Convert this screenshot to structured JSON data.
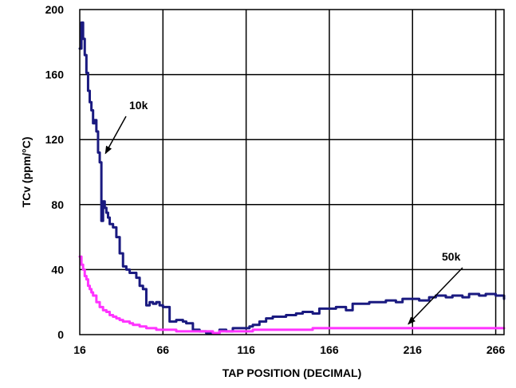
{
  "chart_data": {
    "type": "line",
    "title": "",
    "xlabel": "TAP POSITION (DECIMAL)",
    "ylabel": "TCv (ppm/°C)",
    "xlim": [
      16,
      271
    ],
    "ylim": [
      0,
      200
    ],
    "x_ticks": [
      16,
      66,
      116,
      166,
      216,
      266
    ],
    "y_ticks": [
      0,
      40,
      80,
      120,
      160,
      200
    ],
    "grid": true,
    "legend": "none",
    "colors": {
      "10k": "#1a1a80",
      "50k": "#ff33ff",
      "grid": "#000000"
    },
    "annotations": [
      {
        "text": "10k",
        "series": "10k",
        "target": {
          "x": 30,
          "y": 110
        }
      },
      {
        "text": "50k",
        "series": "50k",
        "target": {
          "x": 212,
          "y": 5
        }
      }
    ],
    "series": [
      {
        "name": "10k",
        "x": [
          16,
          17,
          18,
          19,
          20,
          21,
          22,
          23,
          24,
          25,
          26,
          27,
          28,
          29,
          30,
          31,
          32,
          33,
          34,
          36,
          38,
          40,
          42,
          44,
          46,
          48,
          50,
          52,
          54,
          56,
          58,
          60,
          62,
          64,
          66,
          70,
          74,
          78,
          80,
          84,
          88,
          92,
          96,
          100,
          104,
          108,
          112,
          116,
          118,
          120,
          124,
          128,
          132,
          136,
          140,
          146,
          150,
          156,
          160,
          166,
          170,
          176,
          180,
          186,
          190,
          196,
          200,
          206,
          210,
          216,
          220,
          226,
          230,
          236,
          240,
          246,
          250,
          256,
          260,
          266,
          271
        ],
        "values": [
          176,
          192,
          182,
          172,
          161,
          150,
          143,
          138,
          130,
          132,
          125,
          112,
          106,
          70,
          82,
          78,
          75,
          72,
          68,
          66,
          60,
          50,
          42,
          40,
          38,
          38,
          35,
          30,
          28,
          18,
          20,
          19,
          20,
          18,
          17,
          8,
          9,
          8,
          7,
          3,
          2,
          1,
          1,
          3,
          2,
          4,
          4,
          4,
          5,
          6,
          8,
          10,
          11,
          11,
          12,
          13,
          14,
          13,
          16,
          16,
          17,
          15,
          19,
          19,
          20,
          20,
          21,
          20,
          22,
          22,
          21,
          23,
          24,
          23,
          24,
          23,
          25,
          24,
          25,
          24,
          22
        ]
      },
      {
        "name": "50k",
        "x": [
          16,
          17,
          18,
          19,
          20,
          21,
          22,
          23,
          24,
          26,
          28,
          30,
          32,
          34,
          36,
          38,
          40,
          42,
          44,
          46,
          48,
          50,
          52,
          54,
          56,
          58,
          60,
          62,
          64,
          66,
          70,
          74,
          80,
          86,
          90,
          96,
          100,
          106,
          110,
          116,
          120,
          126,
          130,
          136,
          146,
          156,
          166,
          176,
          186,
          196,
          206,
          216,
          226,
          236,
          246,
          256,
          266,
          271
        ],
        "values": [
          48,
          43,
          40,
          36,
          34,
          30,
          28,
          26,
          24,
          20,
          17,
          15,
          14,
          12,
          11,
          10,
          9,
          8,
          8,
          7,
          6,
          6,
          5,
          5,
          4,
          4,
          4,
          3,
          3,
          3,
          3,
          2,
          2,
          2,
          2,
          1,
          2,
          2,
          2,
          2,
          3,
          3,
          3,
          3,
          3,
          4,
          4,
          4,
          4,
          4,
          4,
          4,
          4,
          4,
          4,
          4,
          4,
          4
        ]
      }
    ]
  }
}
